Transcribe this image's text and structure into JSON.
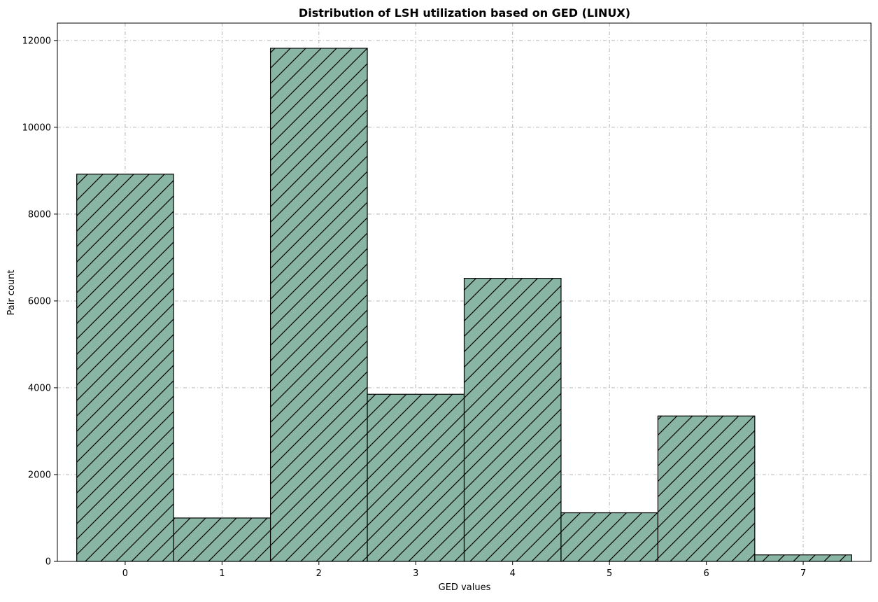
{
  "chart_data": {
    "type": "bar",
    "title": "Distribution of LSH utilization based on GED (LINUX)",
    "xlabel": "GED values",
    "ylabel": "Pair count",
    "categories": [
      "0",
      "1",
      "2",
      "3",
      "4",
      "5",
      "6",
      "7"
    ],
    "values": [
      8920,
      1000,
      11820,
      3850,
      6520,
      1120,
      3350,
      150
    ],
    "ylim": [
      0,
      12400
    ],
    "yticks": [
      0,
      2000,
      4000,
      6000,
      8000,
      10000,
      12000
    ],
    "xticks": [
      0,
      1,
      2,
      3,
      4,
      5,
      6,
      7
    ],
    "grid": true,
    "bar_color": "#89b5a5",
    "edge_color": "#000000",
    "hatch": "diagonal",
    "grid_color": "#b0b0b0"
  }
}
